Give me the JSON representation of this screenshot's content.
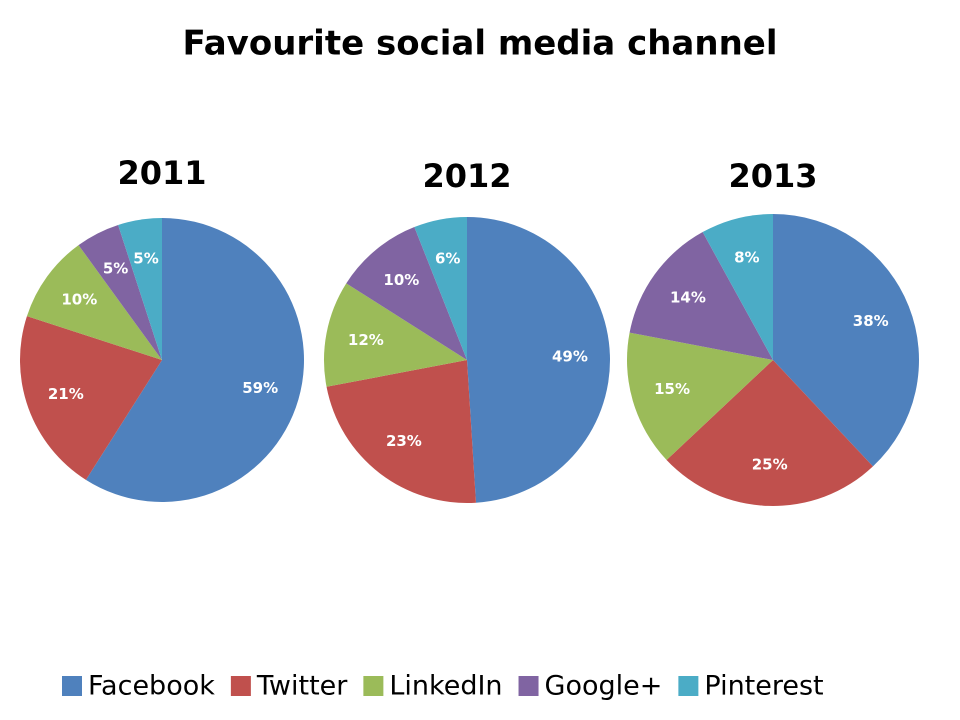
{
  "title": "Favourite social media channel",
  "chart_data": [
    {
      "type": "pie",
      "title": "2011",
      "categories": [
        "Facebook",
        "Twitter",
        "LinkedIn",
        "Google+",
        "Pinterest"
      ],
      "values": [
        59,
        21,
        10,
        5,
        5
      ],
      "value_labels": [
        "59%",
        "21%",
        "10%",
        "5%",
        "5%"
      ],
      "colors": [
        "#4f81bd",
        "#c0504d",
        "#9bbb59",
        "#8064a2",
        "#4bacc6"
      ]
    },
    {
      "type": "pie",
      "title": "2012",
      "categories": [
        "Facebook",
        "Twitter",
        "LinkedIn",
        "Google+",
        "Pinterest"
      ],
      "values": [
        49,
        23,
        12,
        10,
        6
      ],
      "value_labels": [
        "49%",
        "23%",
        "12%",
        "10%",
        "6%"
      ],
      "colors": [
        "#4f81bd",
        "#c0504d",
        "#9bbb59",
        "#8064a2",
        "#4bacc6"
      ]
    },
    {
      "type": "pie",
      "title": "2013",
      "categories": [
        "Facebook",
        "Twitter",
        "LinkedIn",
        "Google+",
        "Pinterest"
      ],
      "values": [
        38,
        25,
        15,
        14,
        8
      ],
      "value_labels": [
        "38%",
        "25%",
        "15%",
        "14%",
        "8%"
      ],
      "colors": [
        "#4f81bd",
        "#c0504d",
        "#9bbb59",
        "#8064a2",
        "#4bacc6"
      ]
    }
  ]
}
